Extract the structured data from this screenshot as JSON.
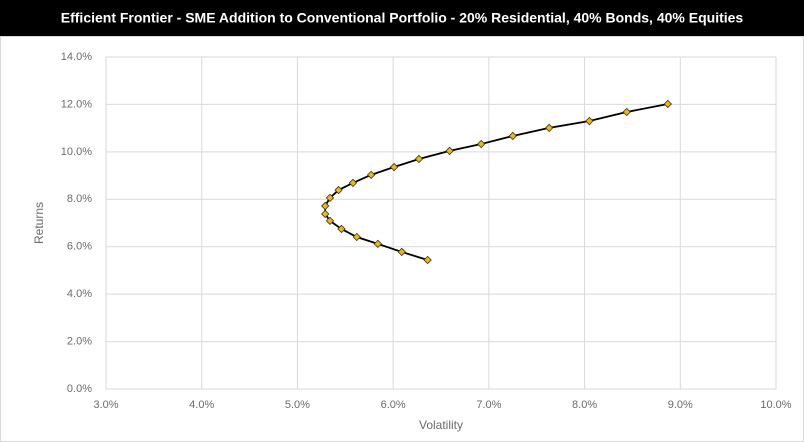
{
  "chart_data": {
    "type": "line",
    "title": "Efficient Frontier - SME Addition to Conventional Portfolio - 20% Residential, 40% Bonds, 40% Equities",
    "x_label": "Volatility",
    "y_label": "Returns",
    "xlim": [
      3.0,
      10.0
    ],
    "xticks": [
      {
        "value": 3.0,
        "label": "3.0%"
      },
      {
        "value": 4.0,
        "label": "4.0%"
      },
      {
        "value": 5.0,
        "label": "5.0%"
      },
      {
        "value": 6.0,
        "label": "6.0%"
      },
      {
        "value": 7.0,
        "label": "7.0%"
      },
      {
        "value": 8.0,
        "label": "8.0%"
      },
      {
        "value": 9.0,
        "label": "9.0%"
      },
      {
        "value": 10.0,
        "label": "10.0%"
      }
    ],
    "ylim": [
      0.0,
      14.0
    ],
    "yticks": [
      {
        "value": 0.0,
        "label": "0.0%"
      },
      {
        "value": 2.0,
        "label": "2.0%"
      },
      {
        "value": 4.0,
        "label": "4.0%"
      },
      {
        "value": 6.0,
        "label": "6.0%"
      },
      {
        "value": 8.0,
        "label": "8.0%"
      },
      {
        "value": 10.0,
        "label": "10.0%"
      },
      {
        "value": 12.0,
        "label": "12.0%"
      },
      {
        "value": 14.0,
        "label": "14.0%"
      }
    ],
    "grid": true,
    "series": [
      {
        "color": "#f5b800",
        "line_color": "#000000",
        "x": [
          8.87,
          8.44,
          8.05,
          7.63,
          7.25,
          6.92,
          6.59,
          6.27,
          6.01,
          5.77,
          5.58,
          5.43,
          5.34,
          5.29,
          5.29,
          5.34,
          5.46,
          5.62,
          5.84,
          6.09,
          6.36
        ],
        "values": [
          12.02,
          11.68,
          11.3,
          11.01,
          10.67,
          10.33,
          10.04,
          9.7,
          9.36,
          9.03,
          8.69,
          8.39,
          8.06,
          7.72,
          7.38,
          7.09,
          6.75,
          6.41,
          6.12,
          5.78,
          5.44
        ]
      }
    ]
  }
}
